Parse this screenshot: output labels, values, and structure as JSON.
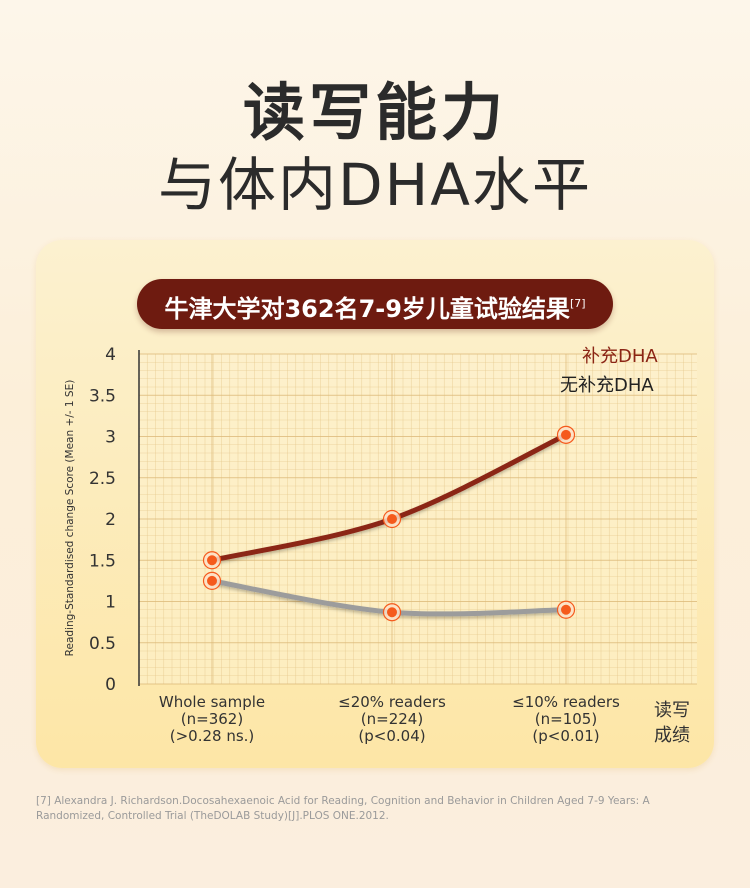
{
  "header": {
    "title_line1": "读写能力",
    "title_line2": "与体内DHA水平"
  },
  "banner": {
    "text": "牛津大学对362名7-9岁儿童试验结果",
    "ref": "[7]"
  },
  "chart_data": {
    "type": "line",
    "ylabel": "Reading-Standardised change Score (Mean +/- 1 SE)",
    "xlabel_lines": [
      "读写",
      "成绩"
    ],
    "ylim": [
      0,
      4
    ],
    "yticks": [
      "0",
      "0.5",
      "1",
      "1.5",
      "2",
      "2.5",
      "3",
      "3.5",
      "4"
    ],
    "grid": true,
    "legend_position": "top-right",
    "categories": [
      {
        "lines": [
          "Whole sample",
          "(n=362)",
          "(>0.28 ns.)"
        ]
      },
      {
        "lines": [
          "≤20% readers",
          "(n=224)",
          "(p<0.04)"
        ]
      },
      {
        "lines": [
          "≤10% readers",
          "(n=105)",
          "(p<0.01)"
        ]
      }
    ],
    "series": [
      {
        "name": "补充DHA",
        "values": [
          1.5,
          2.0,
          3.02
        ],
        "color": "#8b2515"
      },
      {
        "name": "无补充DHA",
        "values": [
          1.25,
          0.87,
          0.9
        ],
        "color": "#9c9c9c"
      }
    ],
    "marker_color": "#f55a1c"
  },
  "footnote": {
    "text": "[7] Alexandra J. Richardson.Docosahexaenoic Acid for Reading, Cognition and Behavior in Children Aged 7-9 Years: A Randomized, Controlled Trial (TheDOLAB Study)[J].PLOS ONE.2012."
  }
}
